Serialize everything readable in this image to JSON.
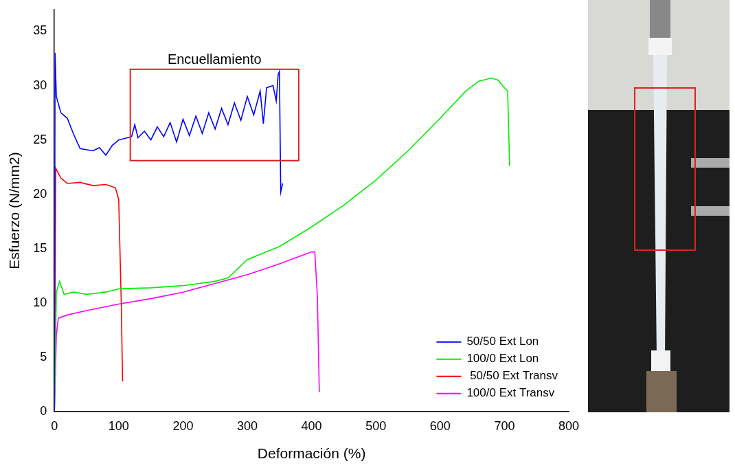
{
  "chart_data": {
    "type": "line",
    "x_label": "Deformación (%)",
    "y_label": "Esfuerzo (N/mm2)",
    "xlim": [
      0,
      800
    ],
    "xticks": [
      0,
      100,
      200,
      300,
      400,
      500,
      600,
      700,
      800
    ],
    "ylim": [
      0,
      37
    ],
    "yticks": [
      0,
      5,
      10,
      15,
      20,
      25,
      30,
      35
    ],
    "grid": false,
    "legend": "lower right",
    "annotation": {
      "text": "Encuellamiento",
      "color": "#e02020",
      "x": [
        118,
        380
      ],
      "y": [
        23.1,
        31.5
      ]
    },
    "series": [
      {
        "name": "50/50 Ext Lon",
        "color": "#0000ff",
        "x": [
          0,
          1,
          3,
          10,
          20,
          30,
          40,
          60,
          70,
          80,
          90,
          100,
          120,
          125,
          130,
          140,
          150,
          160,
          170,
          180,
          190,
          200,
          210,
          220,
          230,
          240,
          250,
          260,
          270,
          280,
          290,
          300,
          310,
          320,
          325,
          330,
          340,
          345,
          348,
          350,
          352,
          355
        ],
        "values": [
          0,
          33,
          29,
          27.5,
          27,
          25.5,
          24.2,
          24,
          24.3,
          23.6,
          24.5,
          25,
          25.3,
          26.4,
          25.2,
          25.8,
          25,
          26.2,
          25.3,
          26.6,
          24.8,
          26.9,
          25.4,
          27.2,
          25.6,
          27.5,
          26,
          27.9,
          26.4,
          28.4,
          26.8,
          29,
          27.3,
          29.5,
          26.5,
          29.8,
          30,
          28.6,
          31,
          31.3,
          20.2,
          21
        ]
      },
      {
        "name": "100/0 Ext Lon",
        "color": "#00ee00",
        "x": [
          0,
          3,
          8,
          15,
          30,
          50,
          80,
          100,
          150,
          200,
          250,
          270,
          300,
          350,
          400,
          450,
          500,
          550,
          600,
          640,
          660,
          680,
          690,
          700,
          705,
          708
        ],
        "values": [
          0,
          11,
          12,
          10.8,
          11,
          10.8,
          11,
          11.3,
          11.4,
          11.6,
          12,
          12.3,
          14,
          15.2,
          17,
          19,
          21.3,
          24,
          27,
          29.5,
          30.4,
          30.7,
          30.5,
          29.8,
          29.5,
          22.6
        ]
      },
      {
        "name": " 50/50 Ext Transv",
        "color": "#ff0000",
        "x": [
          0,
          2,
          10,
          20,
          40,
          60,
          80,
          95,
          100,
          104,
          106
        ],
        "values": [
          0,
          22.4,
          21.5,
          21,
          21.1,
          20.8,
          20.9,
          20.6,
          19.5,
          10,
          2.8
        ]
      },
      {
        "name": "100/0 Ext Transv",
        "color": "#ff00ff",
        "x": [
          0,
          3,
          6,
          20,
          50,
          100,
          150,
          200,
          250,
          300,
          350,
          400,
          405,
          409,
          412
        ],
        "values": [
          0,
          7,
          8.6,
          8.9,
          9.3,
          9.9,
          10.4,
          11,
          11.8,
          12.6,
          13.6,
          14.7,
          14.7,
          10.6,
          1.8
        ]
      }
    ]
  }
}
